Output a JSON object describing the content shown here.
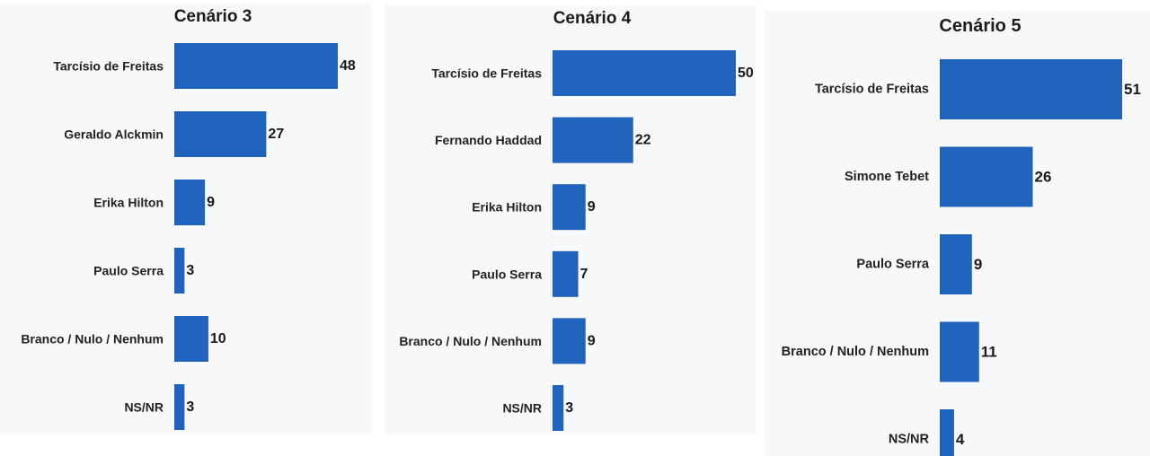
{
  "chart_data": [
    {
      "type": "bar",
      "orientation": "horizontal",
      "title": "Cenário 3",
      "categories": [
        "Tarcísio de Freitas",
        "Geraldo Alckmin",
        "Erika Hilton",
        "Paulo Serra",
        "Branco / Nulo / Nenhum",
        "NS/NR"
      ],
      "values": [
        48,
        27,
        9,
        3,
        10,
        3
      ],
      "xlim": [
        0,
        48
      ],
      "grid": false,
      "bar_color": "#1f63bd"
    },
    {
      "type": "bar",
      "orientation": "horizontal",
      "title": "Cenário 4",
      "categories": [
        "Tarcísio de Freitas",
        "Fernando Haddad",
        "Erika Hilton",
        "Paulo Serra",
        "Branco / Nulo / Nenhum",
        "NS/NR"
      ],
      "values": [
        50,
        22,
        9,
        7,
        9,
        3
      ],
      "xlim": [
        0,
        50
      ],
      "grid": false,
      "bar_color": "#1f63bd"
    },
    {
      "type": "bar",
      "orientation": "horizontal",
      "title": "Cenário 5",
      "categories": [
        "Tarcísio de Freitas",
        "Simone Tebet",
        "Paulo Serra",
        "Branco / Nulo / Nenhum",
        "NS/NR"
      ],
      "values": [
        51,
        26,
        9,
        11,
        4
      ],
      "xlim": [
        0,
        51
      ],
      "grid": false,
      "bar_color": "#1f63bd"
    }
  ]
}
